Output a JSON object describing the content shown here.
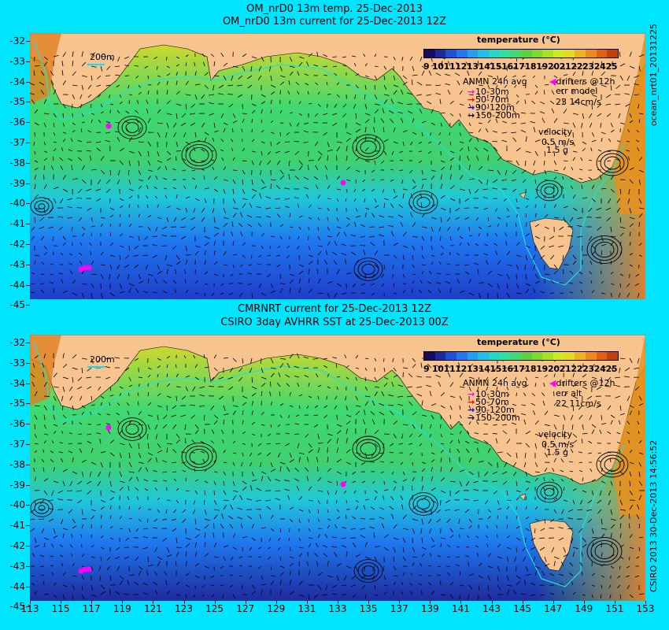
{
  "panels": [
    {
      "title_line1": "OM_nrD0 13m temp. 25-Dec-2013",
      "title_line2": "OM_nrD0 13m current for 25-Dec-2013 12Z",
      "side_label": "ocean_nrt01_20131225",
      "drifters_label": "drifters @12h",
      "err_label": "err model",
      "err_value": "23 14cm/s"
    },
    {
      "title_line1": "CMRNRT current for 25-Dec-2013 12Z",
      "title_line2": "CSIRO 3day AVHRR SST at 25-Dec-2013 00Z",
      "side_label": "CSIRO 2013  30-Dec-2013 14:56:52",
      "drifters_label": "drifters @12h",
      "err_label": "err alt",
      "err_value": "22 11cm/s"
    }
  ],
  "legend": {
    "title": "temperature (°C)",
    "ticks": "9 10111213141516171819202122232425",
    "anmn_label": "ANMN 24h avg",
    "depths": [
      {
        "label": "10-30m",
        "color": "#ff00ff"
      },
      {
        "label": "50-70m",
        "color": "#ff0000"
      },
      {
        "label": "90-120m",
        "color": "#0000ff"
      },
      {
        "label": "150-200m",
        "color": "#000000"
      }
    ],
    "drifter_color": "#ff00ff",
    "velocity_label": "velocity",
    "velocity_value": "0.5 m/s",
    "velocity_sub": "1.5 g",
    "depth_contour_label": "200m"
  },
  "axes": {
    "lat_ticks": [
      "-32",
      "-33",
      "-34",
      "-35",
      "-36",
      "-37",
      "-38",
      "-39",
      "-40",
      "-41",
      "-42",
      "-43",
      "-44",
      "-45"
    ],
    "lon_ticks": [
      "113",
      "115",
      "117",
      "119",
      "121",
      "123",
      "125",
      "127",
      "129",
      "131",
      "133",
      "135",
      "137",
      "139",
      "141",
      "143",
      "145",
      "147",
      "149",
      "151",
      "153"
    ],
    "lat_range": [
      -45,
      -31.7
    ],
    "lon_range": [
      113,
      153
    ]
  },
  "colorscale": [
    "#1a0a5e",
    "#1e2a9c",
    "#1f4ed8",
    "#1f78f0",
    "#1fa0f0",
    "#1fc0e8",
    "#20d8c8",
    "#30e0a0",
    "#40d870",
    "#60d040",
    "#80d830",
    "#a8e020",
    "#d0e820",
    "#e8d820",
    "#f0b020",
    "#f08820",
    "#e06010",
    "#c04010"
  ],
  "colors": {
    "ocean_cold": "#1f4ed8",
    "ocean_mid": "#40d870",
    "ocean_warm": "#e8d820",
    "land": "#f7c38f",
    "contour": "#20e0e0",
    "background": "#00e5ff"
  }
}
